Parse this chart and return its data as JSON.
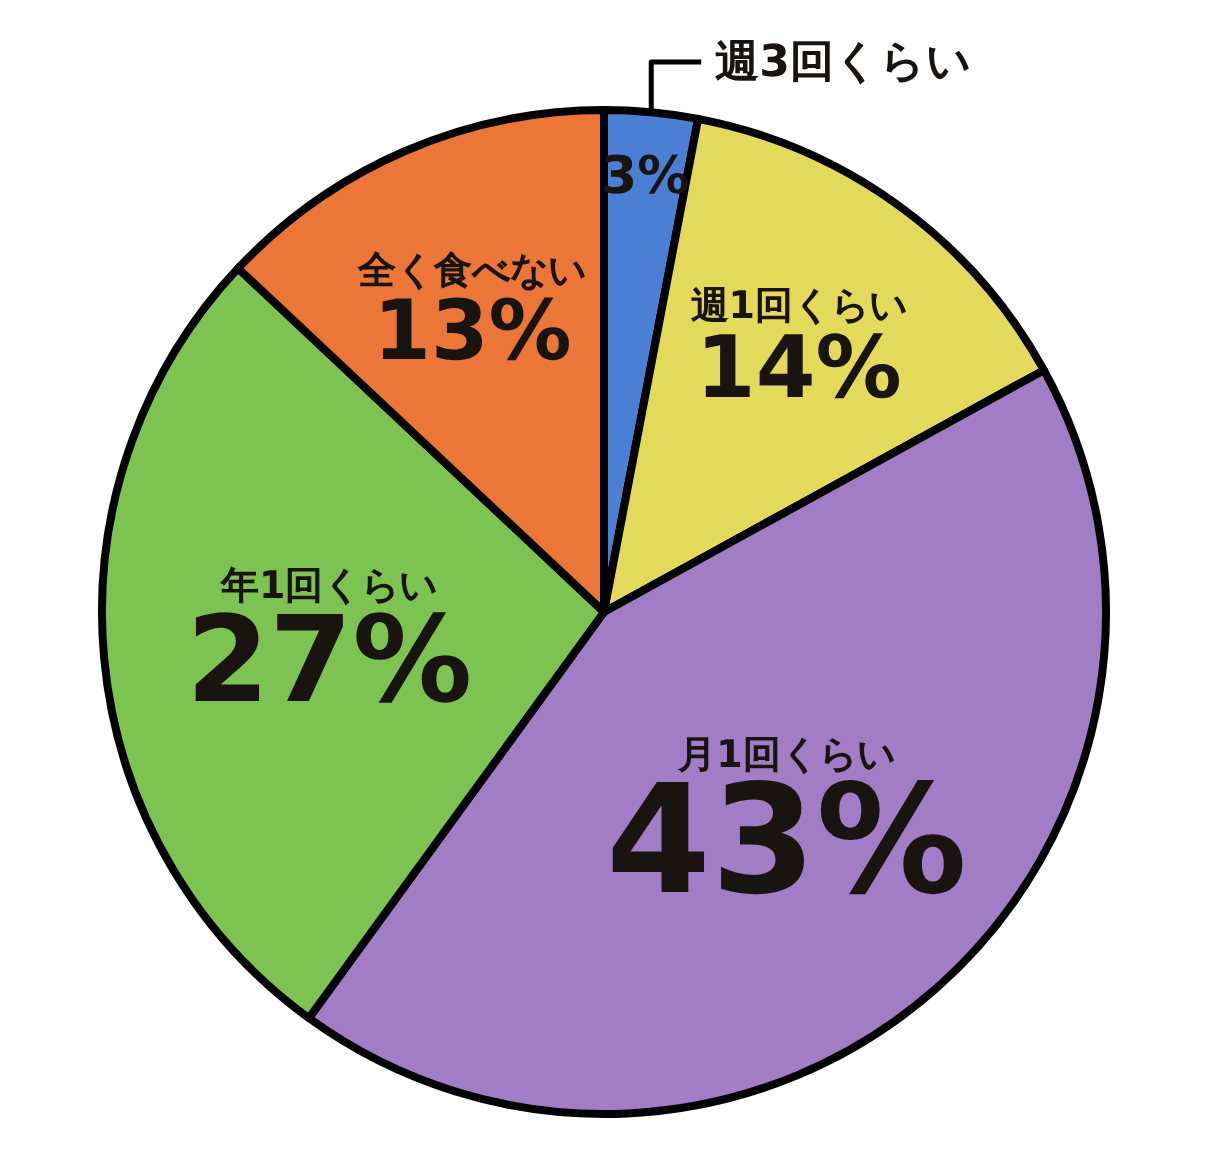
{
  "chart_data": {
    "type": "pie",
    "categories": [
      "週3回くらい",
      "週1回くらい",
      "月1回くらい",
      "年1回くらい",
      "全く食べない"
    ],
    "values": [
      3,
      14,
      43,
      27,
      13
    ],
    "colors": [
      "#4a7fd4",
      "#e3d95a",
      "#a07dc4",
      "#7cc352",
      "#ec7638"
    ],
    "value_labels": [
      "3%",
      "14%",
      "43%",
      "27%",
      "13%"
    ]
  }
}
